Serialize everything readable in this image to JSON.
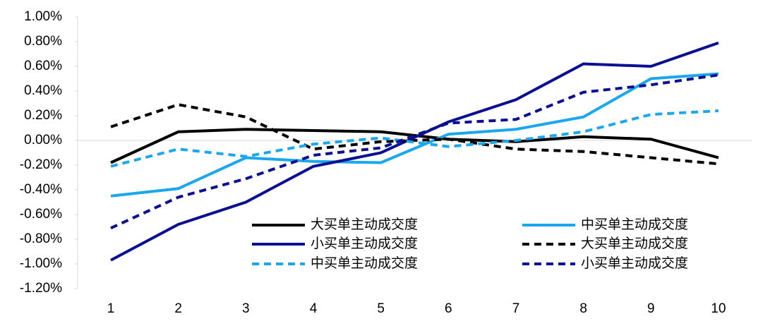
{
  "chart_data": {
    "type": "line",
    "categories": [
      "1",
      "2",
      "3",
      "4",
      "5",
      "6",
      "7",
      "8",
      "9",
      "10"
    ],
    "ylim": [
      -1.2,
      1.0
    ],
    "yticks": [
      {
        "value": 1.0,
        "label": "1.00%"
      },
      {
        "value": 0.8,
        "label": "0.80%"
      },
      {
        "value": 0.6,
        "label": "0.60%"
      },
      {
        "value": 0.4,
        "label": "0.40%"
      },
      {
        "value": 0.2,
        "label": "0.20%"
      },
      {
        "value": 0,
        "label": "0.00%"
      },
      {
        "value": -0.2,
        "label": "-0.20%"
      },
      {
        "value": -0.4,
        "label": "-0.40%"
      },
      {
        "value": -0.6,
        "label": "-0.60%"
      },
      {
        "value": -0.8,
        "label": "-0.80%"
      },
      {
        "value": -1.0,
        "label": "-1.00%"
      },
      {
        "value": -1.2,
        "label": "-1.20%"
      }
    ],
    "legend_columns": 2,
    "series": [
      {
        "name": "大买单主动成交度",
        "color": "#000000",
        "style": "solid",
        "values": [
          -0.18,
          0.07,
          0.09,
          0.08,
          0.07,
          0.01,
          -0.01,
          0.03,
          0.01,
          -0.14
        ]
      },
      {
        "name": "中买单主动成交度",
        "color": "#1aa7ec",
        "style": "solid",
        "values": [
          -0.45,
          -0.39,
          -0.14,
          -0.17,
          -0.18,
          0.05,
          0.09,
          0.19,
          0.5,
          0.54
        ]
      },
      {
        "name": "小买单主动成交度",
        "color": "#0b0f91",
        "style": "solid",
        "values": [
          -0.97,
          -0.68,
          -0.5,
          -0.21,
          -0.1,
          0.15,
          0.33,
          0.62,
          0.6,
          0.79
        ]
      },
      {
        "name": "大买单主动成交度",
        "color": "#000000",
        "style": "dashed",
        "values": [
          0.11,
          0.29,
          0.19,
          -0.07,
          -0.01,
          0.01,
          -0.07,
          -0.09,
          -0.14,
          -0.19
        ]
      },
      {
        "name": "中买单主动成交度",
        "color": "#1aa7ec",
        "style": "dashed",
        "values": [
          -0.21,
          -0.07,
          -0.13,
          -0.03,
          0.02,
          -0.05,
          0.0,
          0.07,
          0.21,
          0.24
        ]
      },
      {
        "name": "小买单主动成交度",
        "color": "#0b0f91",
        "style": "dashed",
        "values": [
          -0.71,
          -0.46,
          -0.31,
          -0.12,
          -0.06,
          0.14,
          0.17,
          0.39,
          0.45,
          0.53
        ]
      }
    ]
  }
}
